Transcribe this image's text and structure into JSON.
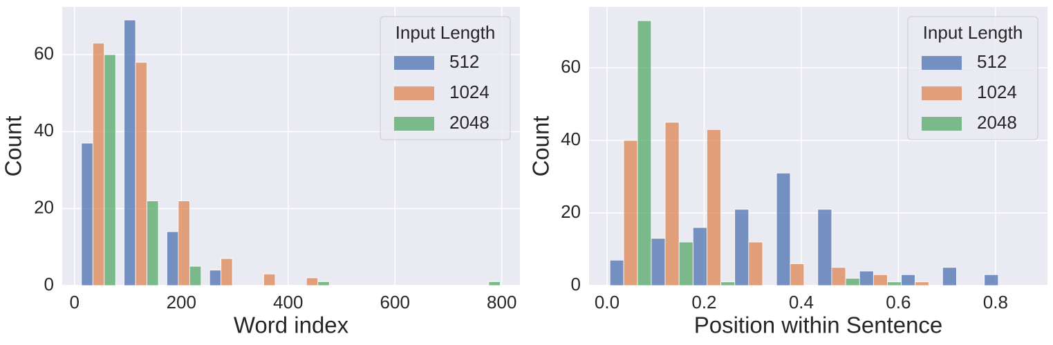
{
  "chart_data": [
    {
      "type": "histogram",
      "xlabel": "Word index",
      "ylabel": "Count",
      "legend_title": "Input Length",
      "legend": "upper right",
      "grid": true,
      "bins": [
        5,
        85,
        165,
        245,
        325,
        405,
        485,
        565,
        645,
        725,
        805
      ],
      "series": [
        {
          "name": "512",
          "color": "#4c72b0",
          "values": [
            37,
            69,
            14,
            4,
            0,
            0,
            0,
            0,
            0,
            0
          ]
        },
        {
          "name": "1024",
          "color": "#dd8452",
          "values": [
            63,
            58,
            22,
            7,
            3,
            2,
            0,
            0,
            0,
            0
          ]
        },
        {
          "name": "2048",
          "color": "#55a868",
          "values": [
            60,
            22,
            5,
            0,
            0,
            1,
            0,
            0,
            0,
            1
          ]
        }
      ],
      "xlim": [
        -23,
        834
      ],
      "ylim": [
        0,
        72.4
      ],
      "xticks": [
        0,
        200,
        400,
        600,
        800
      ],
      "yticks": [
        0,
        20,
        40,
        60
      ]
    },
    {
      "type": "histogram",
      "xlabel": "Position within Sentence",
      "ylabel": "Count",
      "legend_title": "Input Length",
      "legend": "upper right",
      "grid": true,
      "bins": [
        0.006,
        0.091,
        0.177,
        0.263,
        0.349,
        0.434,
        0.52,
        0.606,
        0.691,
        0.777,
        0.863
      ],
      "series": [
        {
          "name": "512",
          "color": "#4c72b0",
          "values": [
            7,
            13,
            16,
            21,
            31,
            21,
            4,
            3,
            5,
            3
          ]
        },
        {
          "name": "1024",
          "color": "#dd8452",
          "values": [
            40,
            45,
            43,
            12,
            6,
            5,
            3,
            1,
            0,
            0
          ]
        },
        {
          "name": "2048",
          "color": "#55a868",
          "values": [
            73,
            12,
            1,
            0,
            0,
            2,
            1,
            0,
            0,
            0
          ]
        }
      ],
      "xlim": [
        -0.037,
        0.907
      ],
      "ylim": [
        0,
        76.8
      ],
      "xticks": [
        {
          "value": 0,
          "label": "0.0"
        },
        0.2,
        0.4,
        0.6,
        0.8
      ],
      "yticks": [
        0,
        20,
        40,
        60
      ]
    }
  ]
}
